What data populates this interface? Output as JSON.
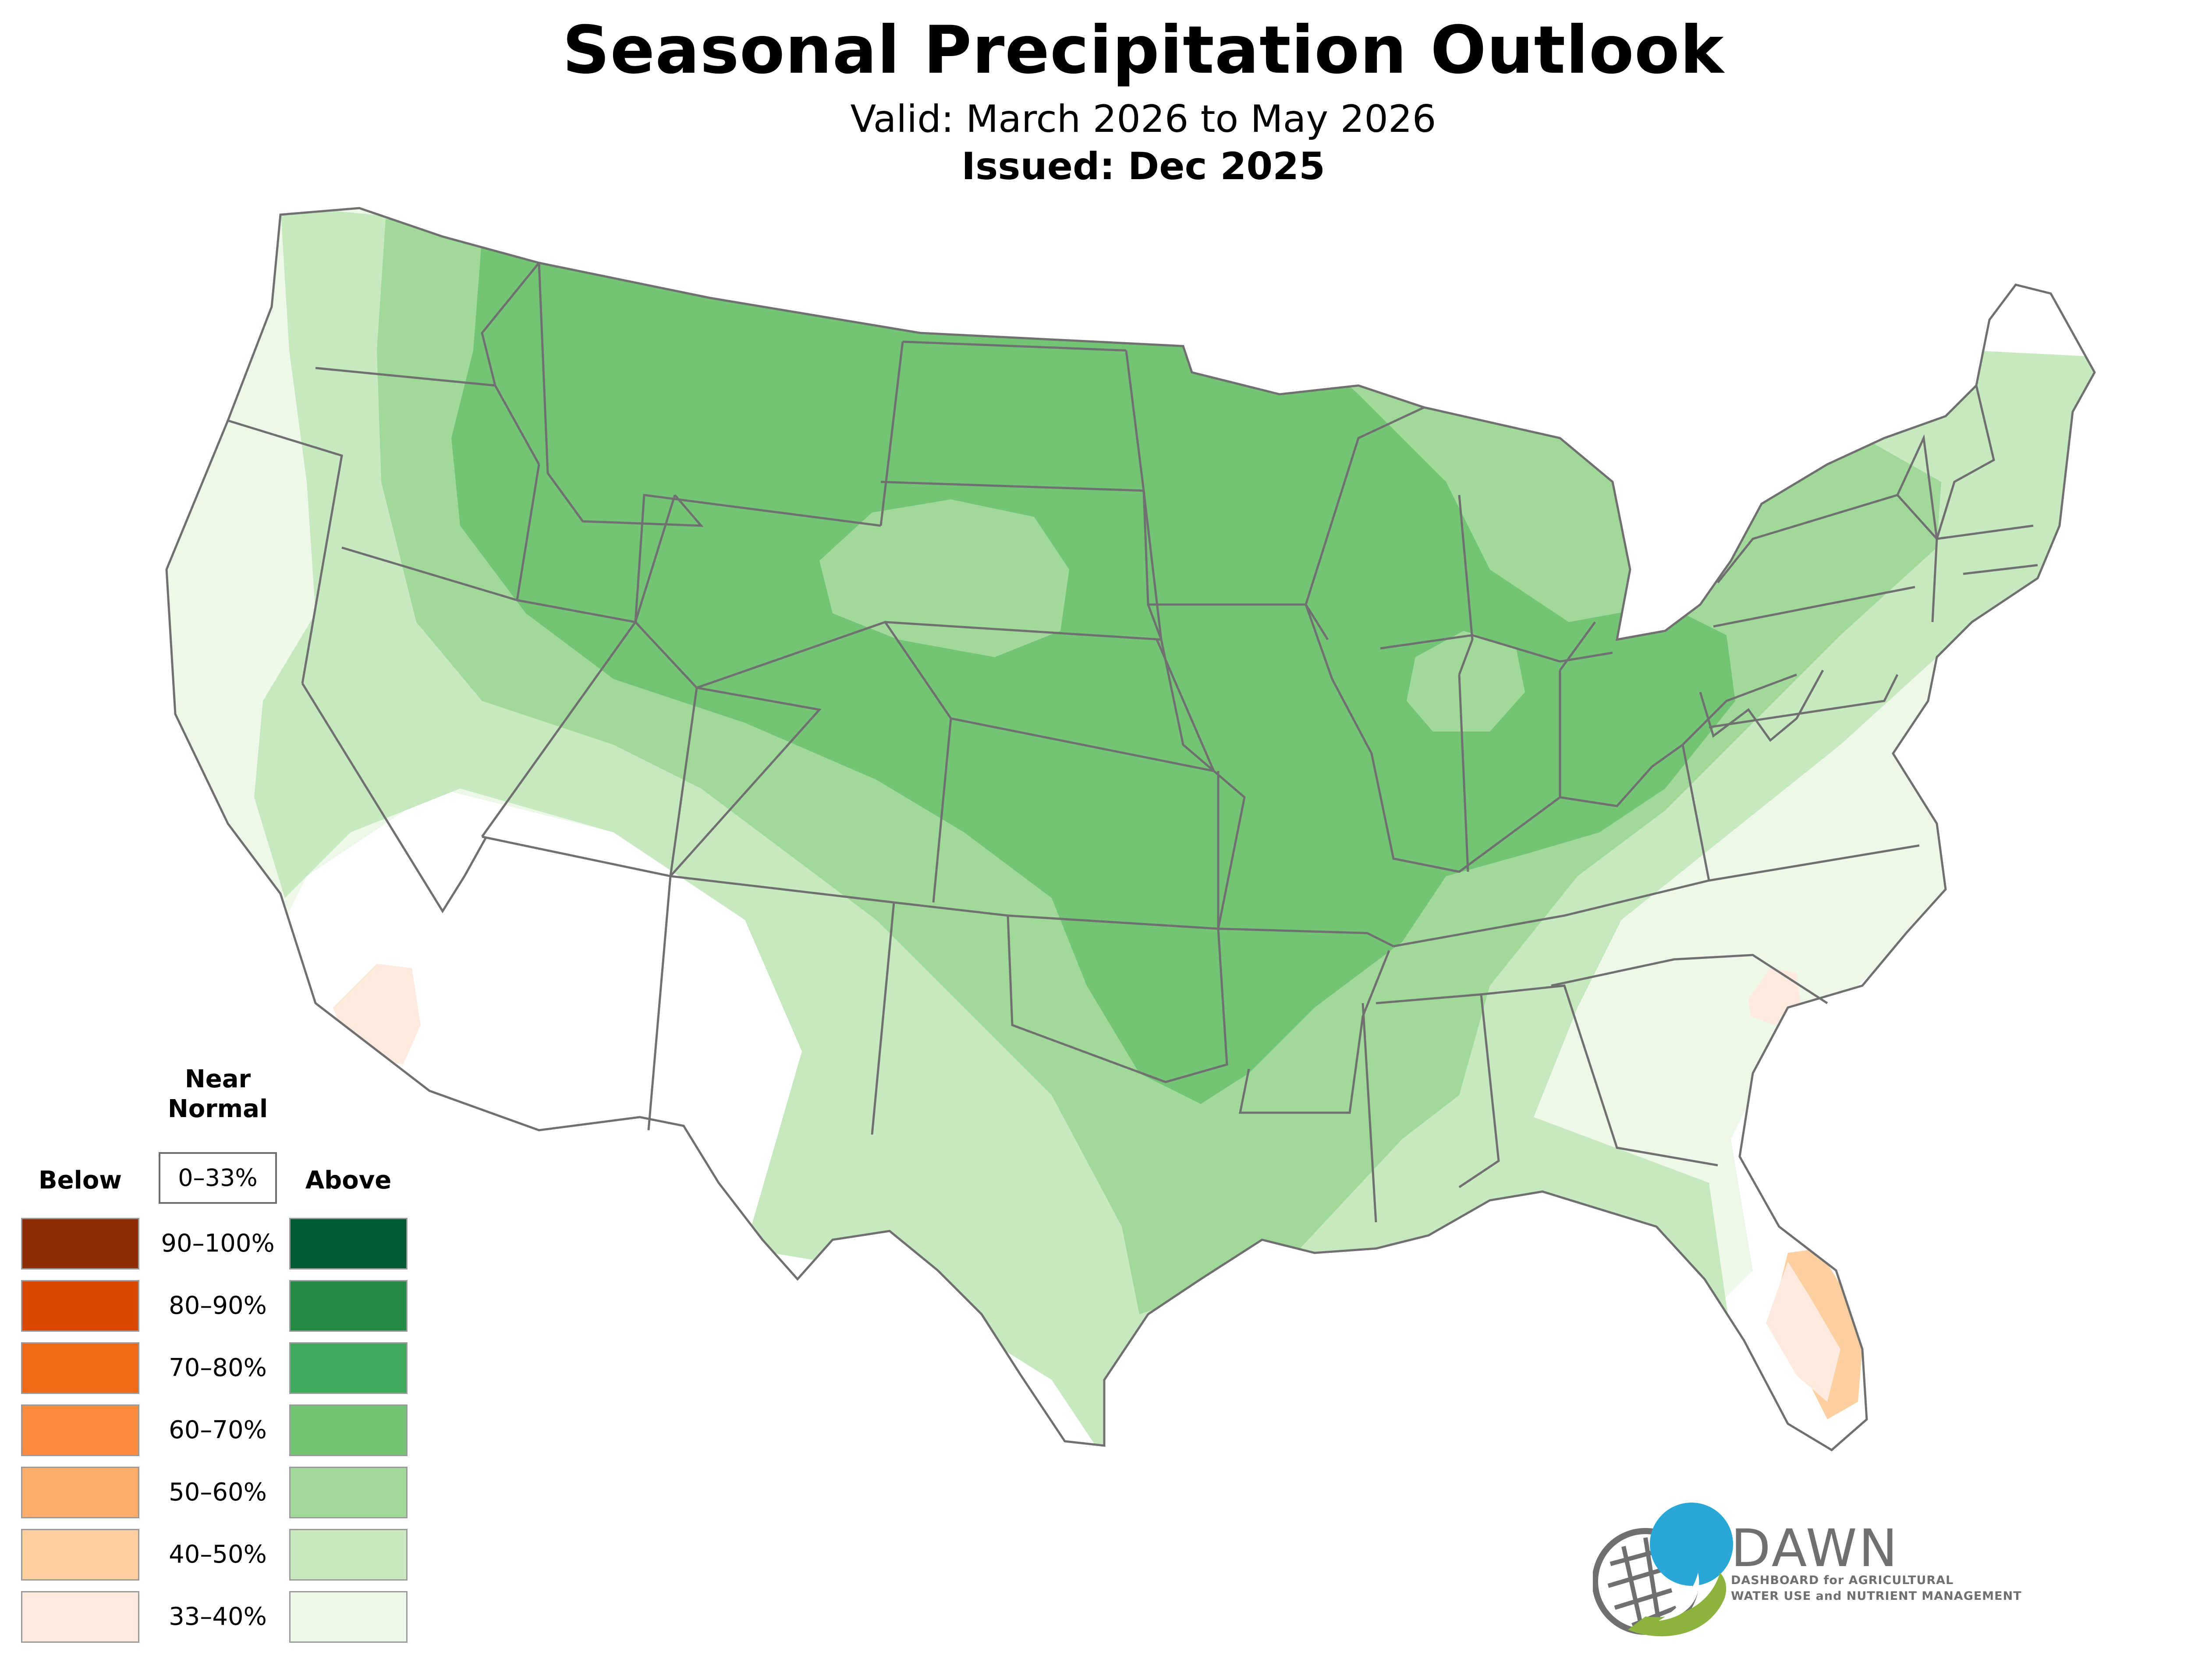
{
  "header": {
    "title": "Seasonal Precipitation Outlook",
    "subtitle": "Valid: March 2026 to May 2026",
    "issued": "Issued: Dec 2025"
  },
  "legend": {
    "near_normal_heading": "Near\nNormal",
    "near_normal_range": "0–33%",
    "below_heading": "Below",
    "above_heading": "Above",
    "rows": [
      {
        "range": "90–100%",
        "below_color": "#8c2d04",
        "above_color": "#005a32"
      },
      {
        "range": "80–90%",
        "below_color": "#d94801",
        "above_color": "#238b45"
      },
      {
        "range": "70–80%",
        "below_color": "#f16913",
        "above_color": "#41ab5d"
      },
      {
        "range": "60–70%",
        "below_color": "#fd8d3c",
        "above_color": "#74c476"
      },
      {
        "range": "50–60%",
        "below_color": "#fdae6b",
        "above_color": "#a1d99b"
      },
      {
        "range": "40–50%",
        "below_color": "#fdd0a2",
        "above_color": "#c7e9c0"
      },
      {
        "range": "33–40%",
        "below_color": "#feeade",
        "above_color": "#edf8e9"
      }
    ]
  },
  "map": {
    "colors": {
      "above_33_40": "#edf8e9",
      "above_40_50": "#c7e9c0",
      "above_50_60": "#a1d99b",
      "above_60_70": "#74c476",
      "below_33_40": "#feeade",
      "below_40_50": "#fdd0a2",
      "border": "#707070"
    }
  },
  "logo": {
    "name": "DAWN",
    "line1": "DASHBOARD for AGRICULTURAL",
    "line2": "WATER USE and NUTRIENT MANAGEMENT",
    "blue": "#29a8d8",
    "green": "#8db33f",
    "gray": "#707070"
  }
}
